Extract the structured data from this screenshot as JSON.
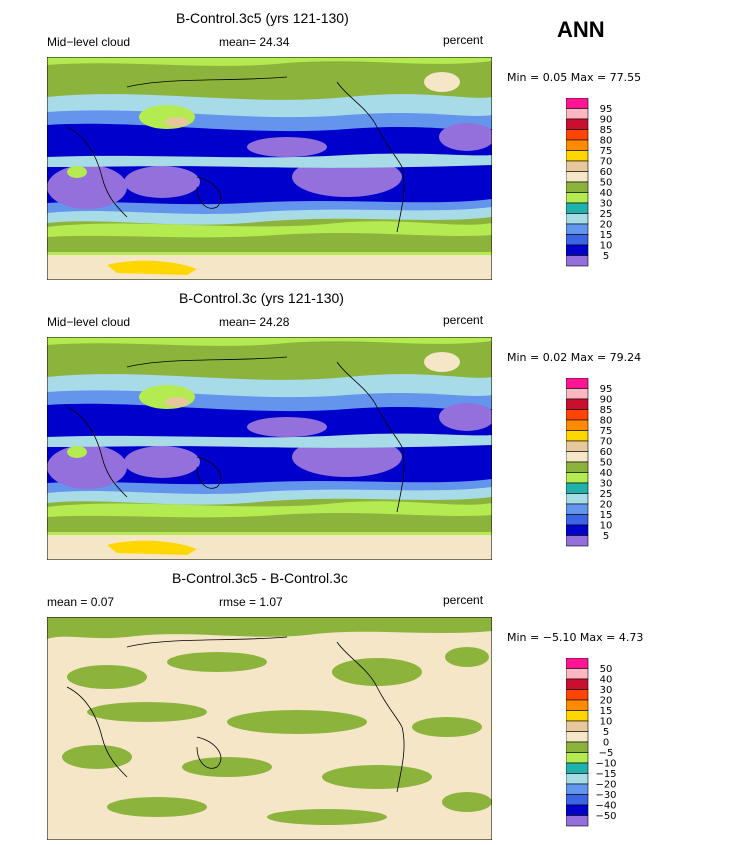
{
  "season": "ANN",
  "panels": [
    {
      "title": "B-Control.3c5 (yrs 121-130)",
      "left_label": "Mid−level cloud",
      "mid_label": "mean=   24.34",
      "right_label": "percent",
      "minmax": "Min =    0.05  Max =   77.55",
      "colorbar": {
        "labels": [
          "95",
          "90",
          "85",
          "80",
          "75",
          "70",
          "60",
          "50",
          "40",
          "30",
          "25",
          "20",
          "15",
          "10",
          "5"
        ],
        "colors": [
          "#ff1493",
          "#ffb6c1",
          "#c8102e",
          "#ff4500",
          "#ff8c00",
          "#ffd700",
          "#e6c89c",
          "#f5e6c8",
          "#8cb43c",
          "#b4eb50",
          "#20b2aa",
          "#a8dbe8",
          "#6495ed",
          "#3c64e6",
          "#0000cd",
          "#9370db"
        ]
      }
    },
    {
      "title": "B-Control.3c (yrs 121-130)",
      "left_label": "Mid−level cloud",
      "mid_label": "mean=   24.28",
      "right_label": "percent",
      "minmax": "Min =    0.02  Max =   79.24",
      "colorbar": {
        "labels": [
          "95",
          "90",
          "85",
          "80",
          "75",
          "70",
          "60",
          "50",
          "40",
          "30",
          "25",
          "20",
          "15",
          "10",
          "5"
        ],
        "colors": [
          "#ff1493",
          "#ffb6c1",
          "#c8102e",
          "#ff4500",
          "#ff8c00",
          "#ffd700",
          "#e6c89c",
          "#f5e6c8",
          "#8cb43c",
          "#b4eb50",
          "#20b2aa",
          "#a8dbe8",
          "#6495ed",
          "#3c64e6",
          "#0000cd",
          "#9370db"
        ]
      }
    },
    {
      "title": "B-Control.3c5 - B-Control.3c",
      "left_label": "mean =    0.07",
      "mid_label": "rmse =    1.07",
      "right_label": "percent",
      "minmax": "Min =  −5.10  Max =    4.73",
      "colorbar": {
        "labels": [
          "50",
          "40",
          "30",
          "20",
          "15",
          "10",
          "5",
          "0",
          "−5",
          "−10",
          "−15",
          "−20",
          "−30",
          "−40",
          "−50"
        ],
        "colors": [
          "#ff1493",
          "#ffb6c1",
          "#c8102e",
          "#ff4500",
          "#ff8c00",
          "#ffd700",
          "#e6c89c",
          "#f5e6c8",
          "#8cb43c",
          "#b4eb50",
          "#20b2aa",
          "#a8dbe8",
          "#6495ed",
          "#3c64e6",
          "#0000cd",
          "#9370db"
        ]
      }
    }
  ],
  "chart_data": [
    {
      "type": "heatmap",
      "title": "B-Control.3c5 (yrs 121-130)",
      "variable": "Mid-level cloud",
      "units": "percent",
      "mean": 24.34,
      "min": 0.05,
      "max": 77.55,
      "levels": [
        5,
        10,
        15,
        20,
        25,
        30,
        40,
        50,
        60,
        70,
        75,
        80,
        85,
        90,
        95
      ]
    },
    {
      "type": "heatmap",
      "title": "B-Control.3c (yrs 121-130)",
      "variable": "Mid-level cloud",
      "units": "percent",
      "mean": 24.28,
      "min": 0.02,
      "max": 79.24,
      "levels": [
        5,
        10,
        15,
        20,
        25,
        30,
        40,
        50,
        60,
        70,
        75,
        80,
        85,
        90,
        95
      ]
    },
    {
      "type": "heatmap",
      "title": "B-Control.3c5 - B-Control.3c",
      "units": "percent",
      "mean": 0.07,
      "rmse": 1.07,
      "min": -5.1,
      "max": 4.73,
      "levels": [
        -50,
        -40,
        -30,
        -20,
        -15,
        -10,
        -5,
        0,
        5,
        10,
        15,
        20,
        30,
        40,
        50
      ]
    }
  ]
}
